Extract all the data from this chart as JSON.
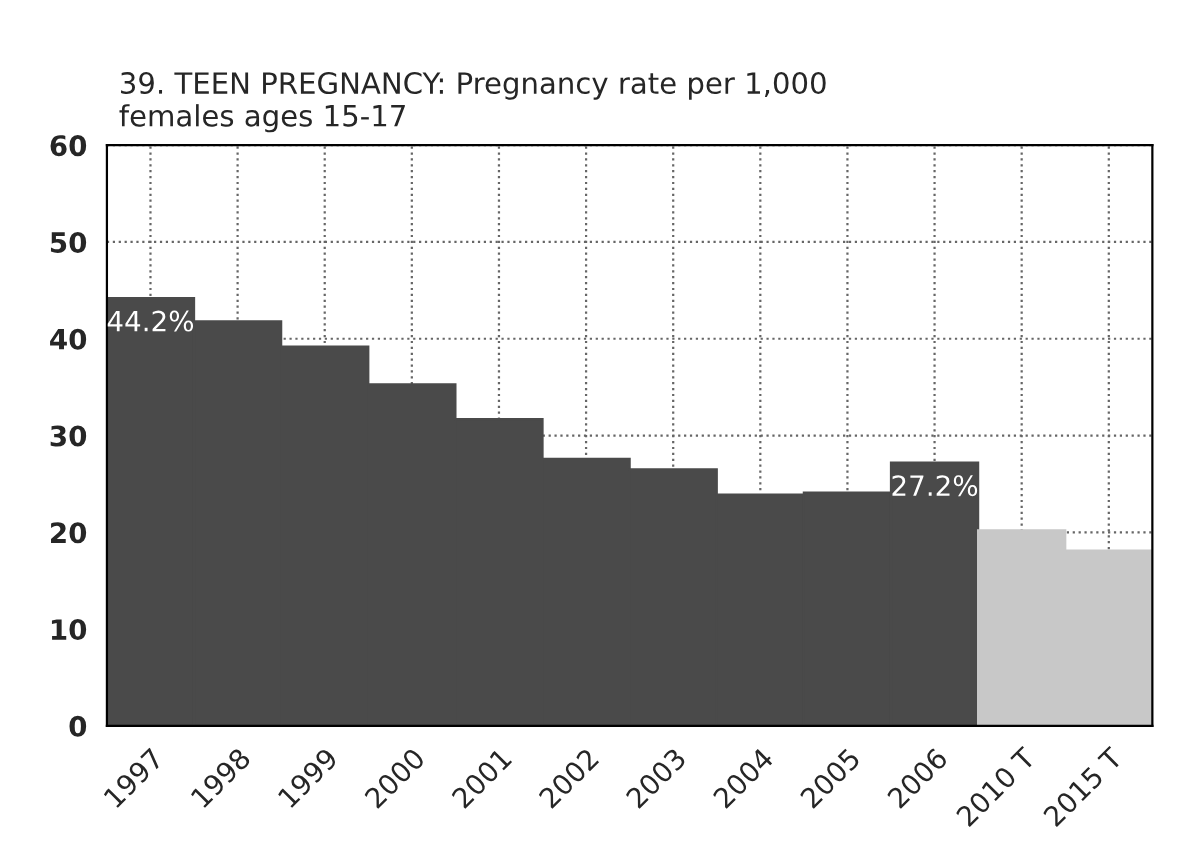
{
  "chart_data": {
    "type": "bar",
    "title": "39. TEEN PREGNANCY: Pregnancy rate per 1,000\nfemales ages 15-17",
    "categories": [
      "1997",
      "1998",
      "1999",
      "2000",
      "2001",
      "2002",
      "2003",
      "2004",
      "2005",
      "2006",
      "2010 T",
      "2015 T"
    ],
    "values": [
      44.2,
      41.8,
      39.2,
      35.3,
      31.7,
      27.6,
      26.5,
      23.9,
      24.1,
      27.2,
      20.2,
      18.1
    ],
    "colors": [
      "#4a4a4a",
      "#4a4a4a",
      "#4a4a4a",
      "#4a4a4a",
      "#4a4a4a",
      "#4a4a4a",
      "#4a4a4a",
      "#4a4a4a",
      "#4a4a4a",
      "#4a4a4a",
      "#c8c8c8",
      "#c8c8c8"
    ],
    "value_labels": [
      "44.2%",
      null,
      null,
      null,
      null,
      null,
      null,
      null,
      null,
      "27.2%",
      null,
      null
    ],
    "ylim": [
      0,
      60
    ],
    "yticks": [
      0,
      10,
      20,
      30,
      40,
      50,
      60
    ],
    "grid": true
  }
}
